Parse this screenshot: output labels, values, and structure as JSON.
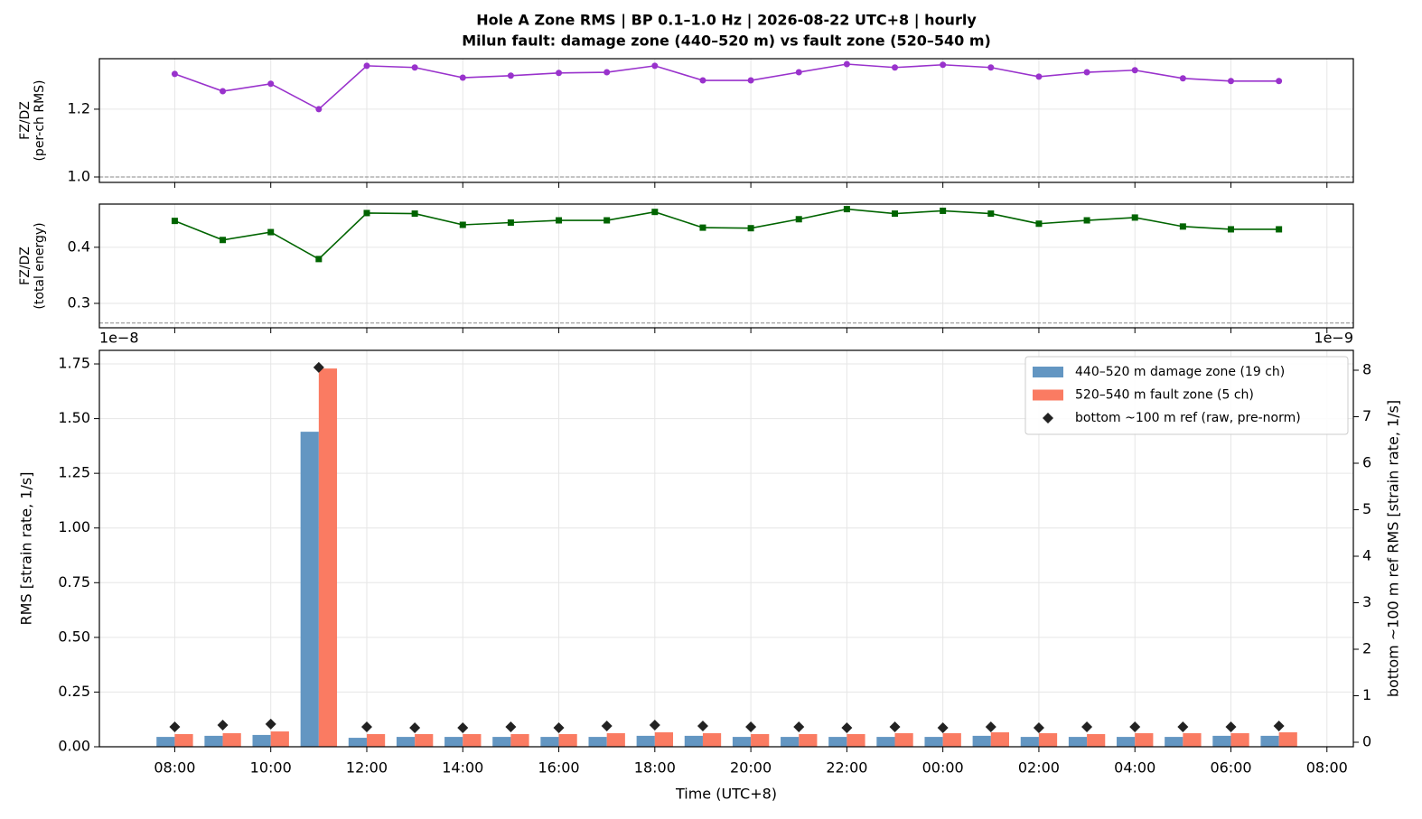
{
  "title": [
    "Hole A Zone RMS  |  BP 0.1–1.0 Hz  |  2026-08-22 UTC+8  |  hourly",
    "Milun fault: damage zone (440–520 m) vs fault zone (520–540 m)"
  ],
  "chart_data": [
    {
      "type": "line",
      "ylabel": [
        "FZ/DZ",
        "(per-ch RMS)"
      ],
      "x": [
        0,
        1,
        2,
        3,
        4,
        5,
        6,
        7,
        8,
        9,
        10,
        11,
        12,
        13,
        14,
        15,
        16,
        17,
        18,
        19,
        20,
        21,
        22,
        23
      ],
      "series": [
        {
          "color": "#9932cc",
          "marker": "circle",
          "values": [
            1.304,
            1.253,
            1.275,
            1.2,
            1.328,
            1.323,
            1.293,
            1.299,
            1.307,
            1.309,
            1.328,
            1.285,
            1.285,
            1.309,
            1.333,
            1.323,
            1.331,
            1.323,
            1.296,
            1.309,
            1.315,
            1.291,
            1.283,
            1.283
          ]
        }
      ],
      "reference_line": 1.0,
      "xlim": [
        -1.57,
        24.55
      ],
      "ylim": [
        0.984,
        1.349
      ],
      "yticks": [
        {
          "value": 1.0,
          "label": "1.0"
        },
        1.2
      ],
      "grid": true
    },
    {
      "type": "line",
      "ylabel": [
        "FZ/DZ",
        "(total energy)"
      ],
      "x": [
        0,
        1,
        2,
        3,
        4,
        5,
        6,
        7,
        8,
        9,
        10,
        11,
        12,
        13,
        14,
        15,
        16,
        17,
        18,
        19,
        20,
        21,
        22,
        23
      ],
      "series": [
        {
          "color": "#006400",
          "marker": "square",
          "values": [
            0.447,
            0.413,
            0.427,
            0.379,
            0.461,
            0.46,
            0.44,
            0.444,
            0.448,
            0.448,
            0.463,
            0.435,
            0.434,
            0.45,
            0.468,
            0.46,
            0.465,
            0.46,
            0.442,
            0.448,
            0.453,
            0.437,
            0.432,
            0.432
          ]
        }
      ],
      "reference_line": 0.265,
      "xlim": [
        -1.57,
        24.55
      ],
      "ylim": [
        0.2565,
        0.477
      ],
      "yticks": [
        0.3,
        0.4
      ],
      "grid": true
    },
    {
      "type": "bar",
      "xlabel": "Time (UTC+8)",
      "ylabel": "RMS  [strain rate, 1/s]",
      "y2label": "bottom ~100 m ref RMS  [strain rate, 1/s]",
      "y_offset_label": "1e−8",
      "y2_offset_label": "1e−9",
      "x": [
        0,
        1,
        2,
        3,
        4,
        5,
        6,
        7,
        8,
        9,
        10,
        11,
        12,
        13,
        14,
        15,
        16,
        17,
        18,
        19,
        20,
        21,
        22,
        23
      ],
      "series": [
        {
          "name": "440–520 m  damage zone (19 ch)",
          "color": "#6396c2",
          "values": [
            0.045,
            0.05,
            0.054,
            1.44,
            0.041,
            0.045,
            0.045,
            0.045,
            0.045,
            0.045,
            0.05,
            0.05,
            0.045,
            0.045,
            0.045,
            0.045,
            0.045,
            0.05,
            0.045,
            0.045,
            0.045,
            0.045,
            0.05,
            0.05
          ]
        },
        {
          "name": "520–540 m  fault zone (5 ch)",
          "color": "#fa7b62",
          "values": [
            0.058,
            0.062,
            0.07,
            1.729,
            0.058,
            0.058,
            0.058,
            0.058,
            0.058,
            0.062,
            0.066,
            0.062,
            0.058,
            0.058,
            0.058,
            0.062,
            0.062,
            0.066,
            0.062,
            0.058,
            0.062,
            0.062,
            0.062,
            0.066
          ]
        },
        {
          "name": "bottom ~100 m ref (raw, pre-norm)",
          "color": "#222222",
          "marker": "diamond",
          "axis": "y2",
          "values": [
            0.33,
            0.37,
            0.39,
            8.06,
            0.33,
            0.31,
            0.31,
            0.33,
            0.31,
            0.35,
            0.37,
            0.35,
            0.33,
            0.33,
            0.31,
            0.33,
            0.31,
            0.33,
            0.31,
            0.33,
            0.33,
            0.33,
            0.33,
            0.35
          ]
        }
      ],
      "xlim": [
        -1.57,
        24.55
      ],
      "ylim": [
        0,
        1.812
      ],
      "y2lim": [
        -0.097,
        8.427
      ],
      "xticks": [
        {
          "value": 0,
          "label": "08:00"
        },
        {
          "value": 2,
          "label": "10:00"
        },
        {
          "value": 4,
          "label": "12:00"
        },
        {
          "value": 6,
          "label": "14:00"
        },
        {
          "value": 8,
          "label": "16:00"
        },
        {
          "value": 10,
          "label": "18:00"
        },
        {
          "value": 12,
          "label": "20:00"
        },
        {
          "value": 14,
          "label": "22:00"
        },
        {
          "value": 16,
          "label": "00:00"
        },
        {
          "value": 18,
          "label": "02:00"
        },
        {
          "value": 20,
          "label": "04:00"
        },
        {
          "value": 22,
          "label": "06:00"
        },
        {
          "value": 24,
          "label": "08:00"
        }
      ],
      "yticks": [
        {
          "value": 0,
          "label": "0.00"
        },
        {
          "value": 0.25,
          "label": "0.25"
        },
        {
          "value": 0.5,
          "label": "0.50"
        },
        {
          "value": 0.75,
          "label": "0.75"
        },
        {
          "value": 1,
          "label": "1.00"
        },
        {
          "value": 1.25,
          "label": "1.25"
        },
        {
          "value": 1.5,
          "label": "1.50"
        },
        {
          "value": 1.75,
          "label": "1.75"
        }
      ],
      "y2ticks": [
        0,
        1,
        2,
        3,
        4,
        5,
        6,
        7,
        8
      ],
      "grid": true,
      "legend": "upper right"
    }
  ]
}
